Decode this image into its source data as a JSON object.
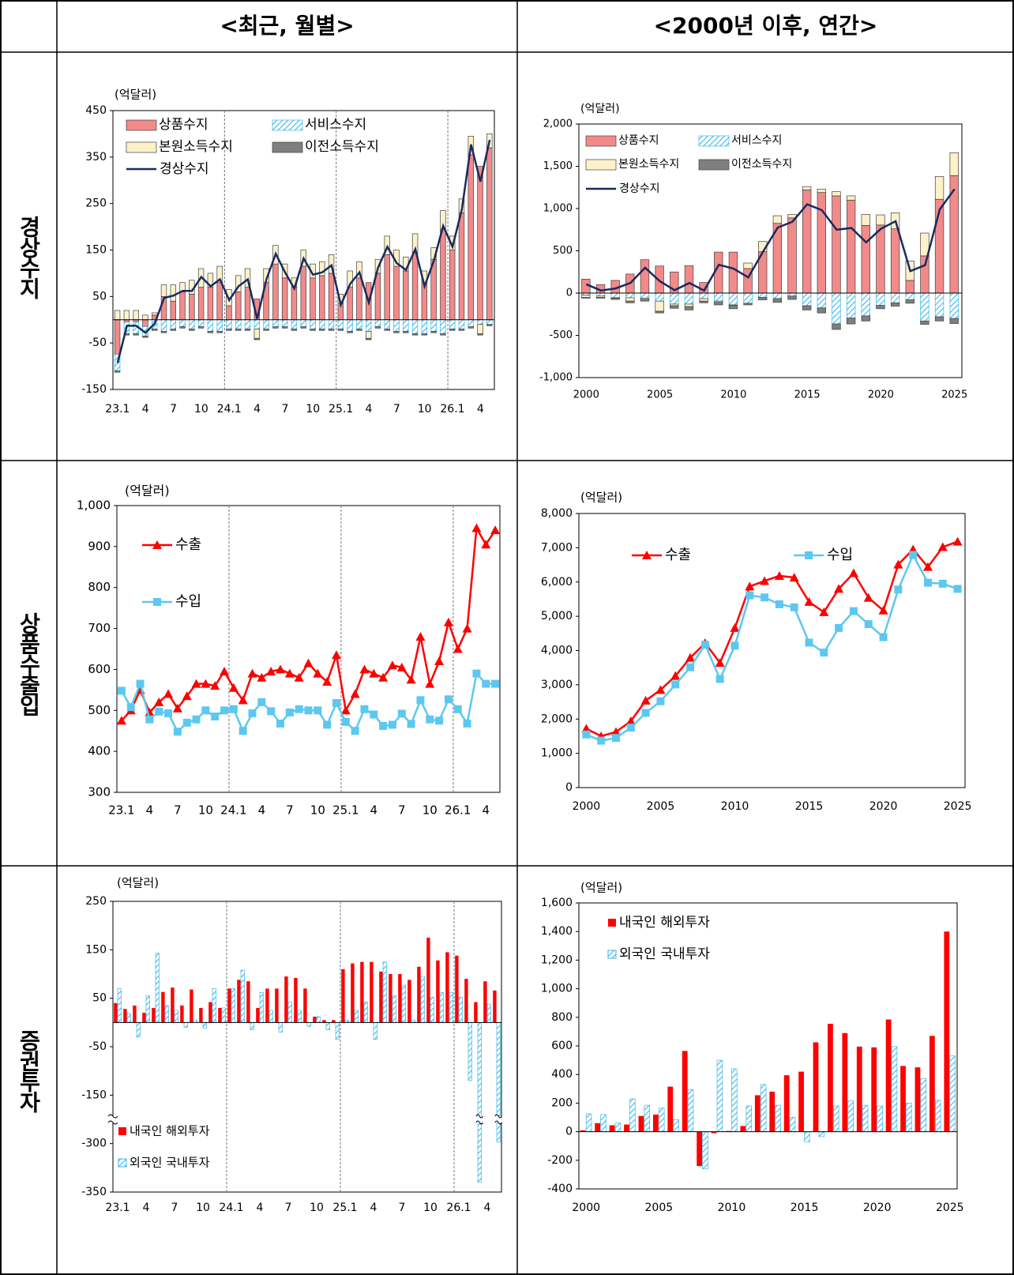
{
  "headers": [
    "<최근, 월별>",
    "<2000년 이후, 연간>"
  ],
  "row_labels": [
    "경상수지",
    "상품수출입",
    "증권투자"
  ],
  "chart_data": [
    {
      "type": "bar",
      "stacked": true,
      "unit": "(억달러)",
      "categories": [
        "23.1",
        null,
        null,
        "4",
        null,
        null,
        "7",
        null,
        null,
        "10",
        null,
        null,
        "24.1",
        null,
        null,
        "4",
        null,
        null,
        "7",
        null,
        null,
        "10",
        null,
        null,
        "25.1",
        null,
        null,
        "4",
        null,
        null,
        "7",
        null,
        null,
        "10",
        null,
        null,
        "26.1",
        null,
        null,
        "4",
        null
      ],
      "series": [
        {
          "name": "상품수지",
          "color": "#f28a8a",
          "values": [
            -75,
            -5,
            -5,
            -15,
            10,
            50,
            40,
            60,
            55,
            70,
            70,
            80,
            30,
            60,
            70,
            45,
            80,
            120,
            90,
            70,
            115,
            90,
            95,
            100,
            35,
            70,
            90,
            80,
            100,
            140,
            115,
            105,
            145,
            80,
            130,
            195,
            150,
            230,
            355,
            330,
            370
          ]
        },
        {
          "name": "서비스수지",
          "color": "#39b7e6",
          "pattern": "hatch",
          "values": [
            -35,
            -25,
            -25,
            -20,
            -20,
            -25,
            -20,
            -15,
            -20,
            -15,
            -25,
            -25,
            -20,
            -20,
            -20,
            -20,
            -20,
            -15,
            -15,
            -20,
            -15,
            -20,
            -20,
            -20,
            -20,
            -25,
            -20,
            -25,
            -15,
            -20,
            -25,
            -25,
            -30,
            -30,
            -25,
            -30,
            -20,
            -20,
            -15,
            -10,
            -10
          ]
        },
        {
          "name": "본원소득수지",
          "color": "#fdf1c9",
          "values": [
            20,
            20,
            20,
            10,
            5,
            25,
            35,
            20,
            30,
            40,
            30,
            35,
            35,
            35,
            40,
            -20,
            30,
            40,
            30,
            20,
            35,
            30,
            30,
            40,
            20,
            35,
            35,
            -15,
            30,
            40,
            35,
            30,
            40,
            25,
            25,
            40,
            30,
            30,
            40,
            -20,
            30
          ]
        },
        {
          "name": "이전소득수지",
          "color": "#7f7f7f",
          "values": [
            -3,
            -3,
            -3,
            -3,
            -3,
            -3,
            -3,
            -3,
            -3,
            -3,
            -3,
            -3,
            -3,
            -3,
            -3,
            -3,
            -3,
            -3,
            -3,
            -3,
            -3,
            -3,
            -3,
            -3,
            -3,
            -3,
            -3,
            -3,
            -3,
            -3,
            -3,
            -3,
            -3,
            -3,
            -3,
            -3,
            -3,
            -3,
            -3,
            -3,
            -3
          ]
        },
        {
          "name": "경상수지",
          "type": "line",
          "color": "#1a2a5c",
          "values": [
            -93,
            -13,
            -13,
            -28,
            -8,
            47,
            52,
            62,
            62,
            92,
            72,
            87,
            42,
            72,
            87,
            2,
            87,
            142,
            102,
            67,
            132,
            97,
            102,
            117,
            32,
            77,
            102,
            37,
            112,
            157,
            122,
            107,
            152,
            72,
            127,
            202,
            157,
            237,
            377,
            297,
            387
          ]
        }
      ],
      "ylim": [
        -150,
        450
      ],
      "yticks": [
        -150,
        -50,
        50,
        150,
        250,
        350,
        450
      ]
    },
    {
      "type": "bar",
      "stacked": true,
      "unit": "(억달러)",
      "categories": [
        "2000",
        null,
        null,
        null,
        null,
        "2005",
        null,
        null,
        null,
        null,
        "2010",
        null,
        null,
        null,
        null,
        "2015",
        null,
        null,
        null,
        null,
        "2020",
        null,
        null,
        null,
        null,
        "2025"
      ],
      "series": [
        {
          "name": "상품수지",
          "color": "#f28a8a",
          "values": [
            165,
            100,
            150,
            225,
            395,
            320,
            250,
            325,
            125,
            485,
            485,
            290,
            490,
            825,
            890,
            1220,
            1190,
            1150,
            1100,
            800,
            805,
            760,
            150,
            440,
            1110,
            1390
          ]
        },
        {
          "name": "서비스수지",
          "color": "#39b7e6",
          "pattern": "hatch",
          "values": [
            -25,
            -35,
            -55,
            -55,
            -60,
            -95,
            -130,
            -130,
            -65,
            -95,
            -140,
            -120,
            -50,
            -65,
            -35,
            -150,
            -175,
            -365,
            -295,
            -270,
            -145,
            -115,
            -80,
            -330,
            -280,
            -300
          ]
        },
        {
          "name": "본원소득수지",
          "color": "#fdf1c9",
          "values": [
            -25,
            -15,
            -5,
            -40,
            -15,
            -120,
            -20,
            -30,
            -30,
            -15,
            -5,
            65,
            120,
            90,
            40,
            40,
            40,
            50,
            50,
            130,
            120,
            190,
            230,
            270,
            270,
            270
          ]
        },
        {
          "name": "이전소득수지",
          "color": "#7f7f7f",
          "values": [
            -10,
            -10,
            -15,
            -20,
            -20,
            -20,
            -30,
            -40,
            -20,
            -30,
            -40,
            -20,
            -30,
            -45,
            -40,
            -50,
            -60,
            -65,
            -70,
            -60,
            -40,
            -40,
            -40,
            -40,
            -50,
            -60
          ]
        },
        {
          "name": "경상수지",
          "type": "line",
          "color": "#1a2a5c",
          "values": [
            105,
            30,
            55,
            120,
            300,
            140,
            35,
            120,
            30,
            335,
            290,
            185,
            490,
            775,
            845,
            1050,
            980,
            750,
            770,
            600,
            760,
            850,
            260,
            330,
            990,
            1230
          ]
        }
      ],
      "ylim": [
        -1000,
        2000
      ],
      "yticks": [
        {
          "value": -1000,
          "label": "-1,000"
        },
        -500,
        0,
        500,
        {
          "value": 1000,
          "label": "1,000"
        },
        {
          "value": 1500,
          "label": "1,500"
        },
        {
          "value": 2000,
          "label": "2,000"
        }
      ]
    },
    {
      "type": "line",
      "unit": "(억달러)",
      "categories": [
        "23.1",
        null,
        null,
        "4",
        null,
        null,
        "7",
        null,
        null,
        "10",
        null,
        null,
        "24.1",
        null,
        null,
        "4",
        null,
        null,
        "7",
        null,
        null,
        "10",
        null,
        null,
        "25.1",
        null,
        null,
        "4",
        null,
        null,
        "7",
        null,
        null,
        "10",
        null,
        null,
        "26.1",
        null,
        null,
        "4",
        null
      ],
      "series": [
        {
          "name": "수출",
          "color": "#ff0000",
          "marker": "triangle",
          "values": [
            475,
            500,
            550,
            495,
            520,
            540,
            505,
            535,
            565,
            565,
            560,
            595,
            555,
            525,
            590,
            580,
            595,
            600,
            590,
            580,
            615,
            590,
            570,
            635,
            500,
            540,
            600,
            590,
            580,
            610,
            605,
            575,
            680,
            565,
            620,
            715,
            650,
            700,
            945,
            905,
            940
          ]
        },
        {
          "name": "수입",
          "color": "#5cc8f0",
          "marker": "square",
          "values": [
            548,
            508,
            565,
            478,
            497,
            493,
            448,
            470,
            478,
            500,
            485,
            500,
            503,
            450,
            493,
            520,
            498,
            468,
            495,
            503,
            500,
            500,
            465,
            518,
            472,
            450,
            503,
            490,
            462,
            465,
            492,
            467,
            525,
            478,
            475,
            527,
            503,
            468,
            590,
            565,
            565
          ]
        }
      ],
      "ylim": [
        300,
        1000
      ],
      "yticks": [
        300,
        400,
        500,
        600,
        700,
        800,
        900,
        {
          "value": 1000,
          "label": "1,000"
        }
      ]
    },
    {
      "type": "line",
      "unit": "(억달러)",
      "categories": [
        "2000",
        null,
        null,
        null,
        null,
        "2005",
        null,
        null,
        null,
        null,
        "2010",
        null,
        null,
        null,
        null,
        "2015",
        null,
        null,
        null,
        null,
        "2020",
        null,
        null,
        null,
        null,
        "2025"
      ],
      "series": [
        {
          "name": "수출",
          "color": "#ff0000",
          "marker": "triangle",
          "values": [
            1720,
            1500,
            1625,
            1940,
            2540,
            2850,
            3260,
            3790,
            4220,
            3640,
            4660,
            5870,
            6030,
            6180,
            6130,
            5420,
            5120,
            5800,
            6260,
            5540,
            5170,
            6510,
            6950,
            6440,
            7020,
            7180
          ]
        },
        {
          "name": "수입",
          "color": "#5cc8f0",
          "marker": "square",
          "values": [
            1550,
            1370,
            1450,
            1750,
            2180,
            2520,
            3010,
            3510,
            4170,
            3170,
            4140,
            5610,
            5550,
            5350,
            5260,
            4230,
            3940,
            4660,
            5150,
            4770,
            4390,
            5780,
            6790,
            5980,
            5950,
            5800
          ]
        }
      ],
      "ylim": [
        0,
        8000
      ],
      "yticks": [
        0,
        {
          "value": 1000,
          "label": "1,000"
        },
        {
          "value": 2000,
          "label": "2,000"
        },
        {
          "value": 3000,
          "label": "3,000"
        },
        {
          "value": 4000,
          "label": "4,000"
        },
        {
          "value": 5000,
          "label": "5,000"
        },
        {
          "value": 6000,
          "label": "6,000"
        },
        {
          "value": 7000,
          "label": "7,000"
        },
        {
          "value": 8000,
          "label": "8,000"
        }
      ]
    },
    {
      "type": "bar",
      "stacked": false,
      "axis_break": true,
      "unit": "(억달러)",
      "categories": [
        "23.1",
        null,
        null,
        "4",
        null,
        null,
        "7",
        null,
        null,
        "10",
        null,
        null,
        "24.1",
        null,
        null,
        "4",
        null,
        null,
        "7",
        null,
        null,
        "10",
        null,
        null,
        "25.1",
        null,
        null,
        "4",
        null,
        null,
        "7",
        null,
        null,
        "10",
        null,
        null,
        "26.1",
        null,
        null,
        "4",
        null
      ],
      "series": [
        {
          "name": "내국인 해외투자",
          "color": "#ff0000",
          "values": [
            40,
            28,
            35,
            20,
            30,
            63,
            72,
            35,
            68,
            30,
            42,
            30,
            70,
            88,
            85,
            30,
            70,
            70,
            95,
            92,
            70,
            12,
            5,
            5,
            110,
            122,
            125,
            125,
            105,
            100,
            100,
            88,
            115,
            175,
            128,
            145,
            138,
            90,
            42,
            85,
            66
          ]
        },
        {
          "name": "외국인 국내투자",
          "color": "#39b7e6",
          "pattern": "hatch",
          "values": [
            70,
            18,
            -30,
            55,
            143,
            35,
            25,
            -10,
            5,
            -12,
            70,
            30,
            70,
            108,
            -15,
            62,
            25,
            -20,
            42,
            25,
            -8,
            12,
            -15,
            -35,
            5,
            25,
            42,
            -35,
            125,
            55,
            77,
            5,
            95,
            52,
            62,
            62,
            52,
            -120,
            -340,
            38,
            -295
          ]
        }
      ],
      "ylim": [
        -350,
        250
      ],
      "yticks": [
        -350,
        -300,
        -150,
        -50,
        50,
        150,
        250
      ]
    },
    {
      "type": "bar",
      "stacked": false,
      "unit": "(억달러)",
      "categories": [
        "2000",
        null,
        null,
        null,
        null,
        "2005",
        null,
        null,
        null,
        null,
        "2010",
        null,
        null,
        null,
        null,
        "2015",
        null,
        null,
        null,
        null,
        "2020",
        null,
        null,
        null,
        null,
        "2025"
      ],
      "series": [
        {
          "name": "내국인 해외투자",
          "color": "#ff0000",
          "values": [
            10,
            60,
            45,
            50,
            110,
            120,
            315,
            565,
            -240,
            -10,
            5,
            40,
            255,
            280,
            395,
            420,
            625,
            755,
            690,
            595,
            590,
            785,
            460,
            450,
            670,
            1400
          ]
        },
        {
          "name": "외국인 국내투자",
          "color": "#39b7e6",
          "pattern": "hatch",
          "values": [
            125,
            120,
            60,
            230,
            185,
            165,
            85,
            295,
            -260,
            500,
            440,
            180,
            330,
            185,
            100,
            -70,
            -35,
            180,
            215,
            185,
            180,
            595,
            200,
            370,
            220,
            530
          ]
        }
      ],
      "ylim": [
        -400,
        1600
      ],
      "yticks": [
        -400,
        -200,
        0,
        200,
        400,
        600,
        800,
        {
          "value": 1000,
          "label": "1,000"
        },
        {
          "value": 1200,
          "label": "1,200"
        },
        {
          "value": 1400,
          "label": "1,400"
        },
        {
          "value": 1600,
          "label": "1,600"
        }
      ]
    }
  ]
}
